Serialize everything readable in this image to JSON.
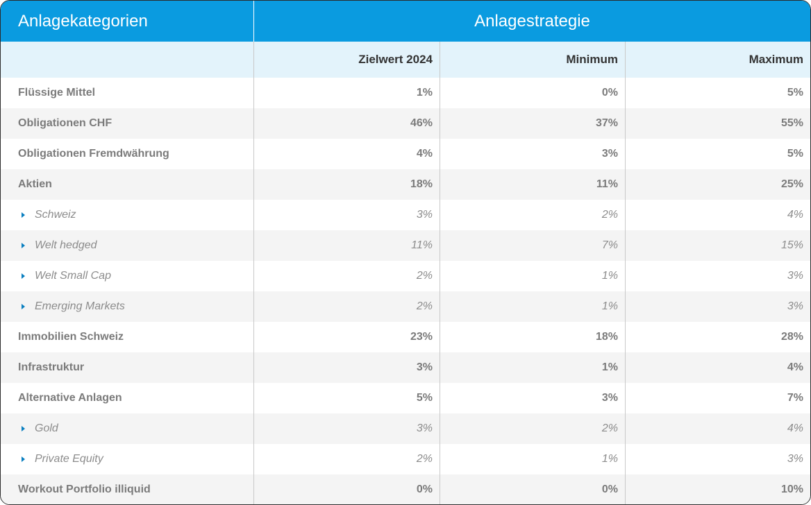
{
  "header": {
    "left_title": "Anlagekategorien",
    "right_title": "Anlagestrategie"
  },
  "columns": [
    "Zielwert 2024",
    "Minimum",
    "Maximum"
  ],
  "rows": [
    {
      "label": "Flüssige Mittel",
      "type": "main",
      "target": "1%",
      "min": "0%",
      "max": "5%"
    },
    {
      "label": "Obligationen CHF",
      "type": "main",
      "target": "46%",
      "min": "37%",
      "max": "55%"
    },
    {
      "label": "Obligationen Fremdwährung",
      "type": "main",
      "target": "4%",
      "min": "3%",
      "max": "5%"
    },
    {
      "label": "Aktien",
      "type": "main",
      "target": "18%",
      "min": "11%",
      "max": "25%"
    },
    {
      "label": "Schweiz",
      "type": "sub",
      "target": "3%",
      "min": "2%",
      "max": "4%"
    },
    {
      "label": "Welt hedged",
      "type": "sub",
      "target": "11%",
      "min": "7%",
      "max": "15%"
    },
    {
      "label": "Welt Small Cap",
      "type": "sub",
      "target": "2%",
      "min": "1%",
      "max": "3%"
    },
    {
      "label": "Emerging Markets",
      "type": "sub",
      "target": "2%",
      "min": "1%",
      "max": "3%"
    },
    {
      "label": "Immobilien Schweiz",
      "type": "main",
      "target": "23%",
      "min": "18%",
      "max": "28%"
    },
    {
      "label": "Infrastruktur",
      "type": "main",
      "target": "3%",
      "min": "1%",
      "max": "4%"
    },
    {
      "label": "Alternative Anlagen",
      "type": "main",
      "target": "5%",
      "min": "3%",
      "max": "7%"
    },
    {
      "label": "Gold",
      "type": "sub",
      "target": "3%",
      "min": "2%",
      "max": "4%"
    },
    {
      "label": "Private Equity",
      "type": "sub",
      "target": "2%",
      "min": "1%",
      "max": "3%"
    },
    {
      "label": "Workout Portfolio illiquid",
      "type": "main",
      "target": "0%",
      "min": "0%",
      "max": "10%"
    }
  ],
  "colors": {
    "header_bg": "#0a9be0",
    "subheader_bg": "#e3f3fb",
    "stripe_bg": "#f4f4f4",
    "bullet": "#0a7fc0"
  },
  "icons": {
    "sub_bullet": "caret-right-icon"
  }
}
